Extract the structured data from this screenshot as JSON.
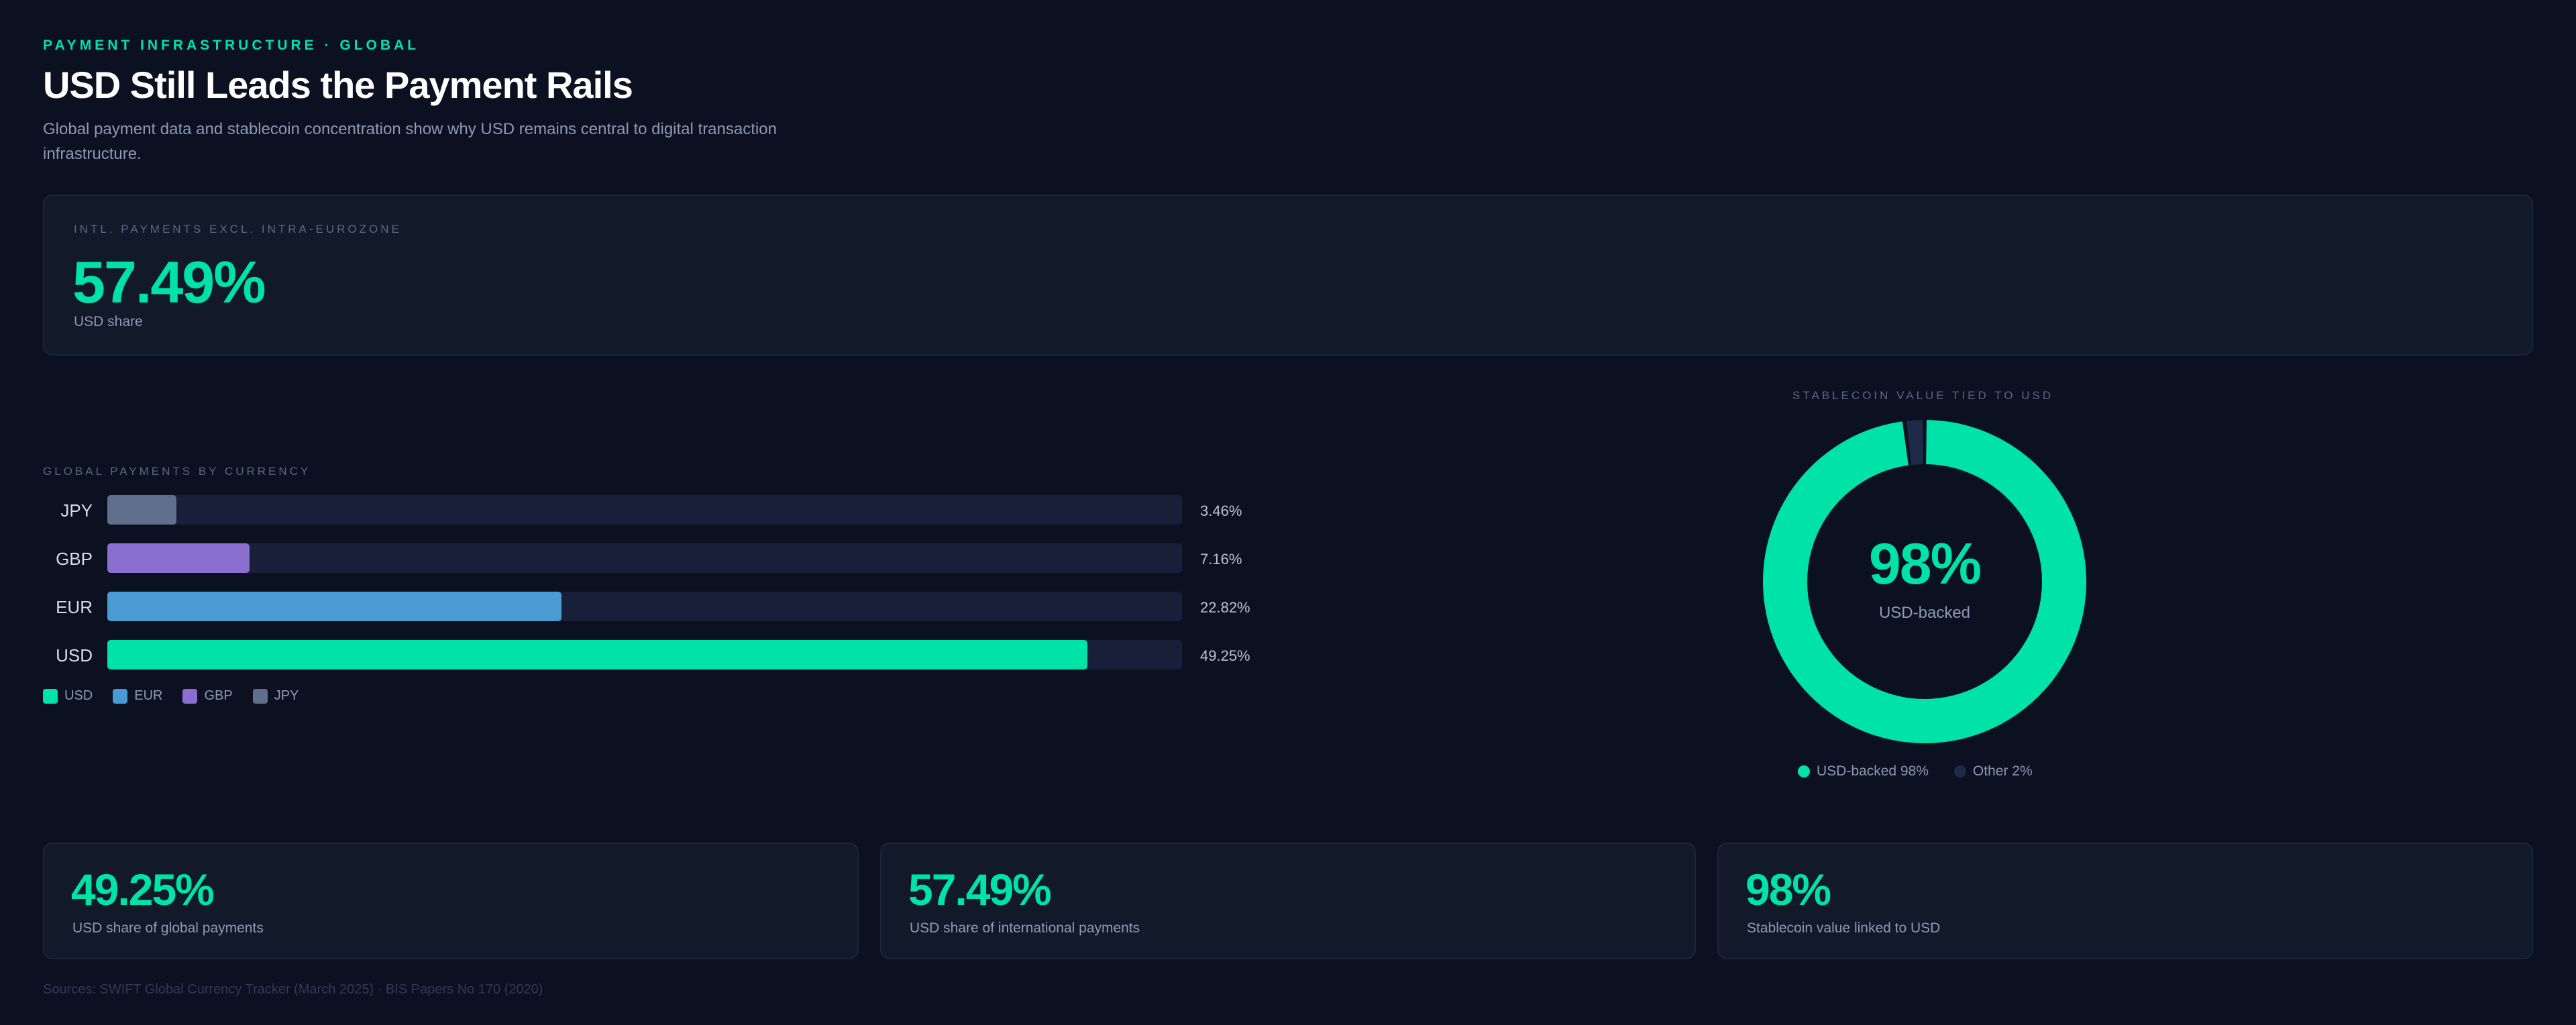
{
  "header": {
    "eyebrow": "PAYMENT INFRASTRUCTURE · GLOBAL",
    "title": "USD Still Leads the Payment Rails",
    "subtitle": "Global payment data and stablecoin concentration show why USD remains central to digital transaction infrastructure."
  },
  "hero": {
    "label": "INTL. PAYMENTS EXCL. INTRA-EUROZONE",
    "value": "57.49%",
    "sub": "USD share"
  },
  "colors": {
    "accent": "#00e3a8",
    "usd": "#00e3a8",
    "eur": "#4a9ad4",
    "gbp": "#8b6fd0",
    "jpy": "#5f6f8c",
    "other": "#1d2a4a"
  },
  "chart_data": [
    {
      "type": "bar",
      "orientation": "horizontal",
      "title": "GLOBAL PAYMENTS BY CURRENCY",
      "categories": [
        "JPY",
        "GBP",
        "EUR",
        "USD"
      ],
      "values": [
        3.46,
        7.16,
        22.82,
        49.25
      ],
      "value_labels": [
        "3.46%",
        "7.16%",
        "22.82%",
        "49.25%"
      ],
      "xlim": [
        0,
        54
      ],
      "legend": [
        "USD",
        "EUR",
        "GBP",
        "JPY"
      ],
      "legend_position": "bottom-left",
      "grid": false
    },
    {
      "type": "pie",
      "variant": "donut",
      "title": "STABLECOIN VALUE TIED TO USD",
      "labels": [
        "USD-backed",
        "Other"
      ],
      "values": [
        98,
        2
      ],
      "center_value": "98%",
      "center_label": "USD-backed",
      "legend": [
        "USD-backed 98%",
        "Other 2%"
      ],
      "legend_position": "bottom"
    }
  ],
  "stats": [
    {
      "value": "49.25%",
      "label": "USD share of global payments"
    },
    {
      "value": "57.49%",
      "label": "USD share of international payments"
    },
    {
      "value": "98%",
      "label": "Stablecoin value linked to USD"
    }
  ],
  "sources": "Sources: SWIFT Global Currency Tracker (March 2025) · BIS Papers No 170 (2020)"
}
